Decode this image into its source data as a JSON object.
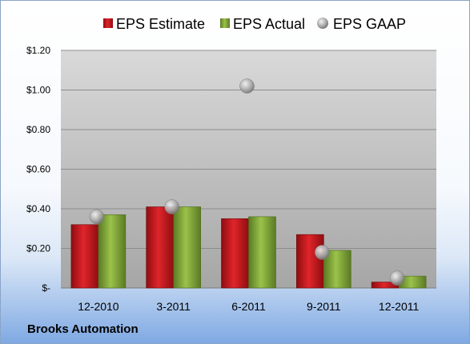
{
  "company": "Brooks Automation",
  "chart_data": {
    "type": "bar",
    "categories": [
      "12-2010",
      "3-2011",
      "6-2011",
      "9-2011",
      "12-2011"
    ],
    "series": [
      {
        "name": "EPS Estimate",
        "kind": "bar",
        "color": "#c0151b",
        "values": [
          0.32,
          0.41,
          0.35,
          0.27,
          0.03
        ]
      },
      {
        "name": "EPS Actual",
        "kind": "bar",
        "color": "#7fa33a",
        "values": [
          0.37,
          0.41,
          0.36,
          0.19,
          0.06
        ]
      },
      {
        "name": "EPS GAAP",
        "kind": "marker",
        "color": "#a9a9a9",
        "values": [
          0.36,
          0.41,
          1.02,
          0.18,
          0.05
        ]
      }
    ],
    "y_ticks": [
      {
        "value": 0,
        "label": "$-"
      },
      {
        "value": 0.2,
        "label": "$0.20"
      },
      {
        "value": 0.4,
        "label": "$0.40"
      },
      {
        "value": 0.6,
        "label": "$0.60"
      },
      {
        "value": 0.8,
        "label": "$0.80"
      },
      {
        "value": 1.0,
        "label": "$1.00"
      },
      {
        "value": 1.2,
        "label": "$1.20"
      }
    ],
    "ylim": [
      0,
      1.2
    ],
    "grid": true,
    "legend_position": "top",
    "plot_background": "#c0c0c0"
  }
}
